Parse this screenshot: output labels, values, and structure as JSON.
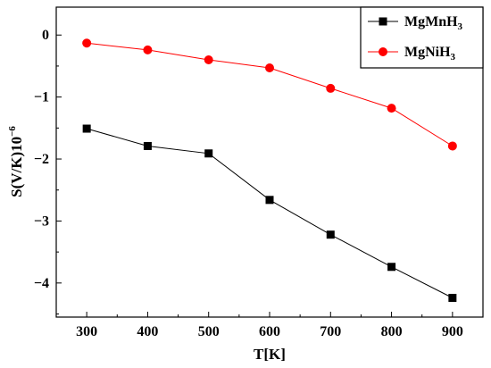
{
  "chart_data": {
    "type": "line",
    "title": "",
    "xlabel": "T[K]",
    "ylabel_base": "S(V/K)10",
    "ylabel_exponent": "−6",
    "x": [
      300,
      400,
      500,
      600,
      700,
      800,
      900
    ],
    "xlim": [
      250,
      950
    ],
    "ylim": [
      -4.55,
      0.45
    ],
    "x_ticks": [
      300,
      400,
      500,
      600,
      700,
      800,
      900
    ],
    "x_tick_labels": [
      "300",
      "400",
      "500",
      "600",
      "700",
      "800",
      "900"
    ],
    "y_ticks": [
      0,
      -1,
      -2,
      -3,
      -4
    ],
    "y_tick_labels": [
      "0",
      "−1",
      "−2",
      "−3",
      "−4"
    ],
    "grid": false,
    "legend_position": "top-right",
    "series": [
      {
        "name_base": "MgMnH",
        "name_sub": "3",
        "color": "#000000",
        "marker": "square",
        "values": [
          -1.51,
          -1.79,
          -1.91,
          -2.66,
          -3.22,
          -3.74,
          -4.24
        ]
      },
      {
        "name_base": "MgNiH",
        "name_sub": "3",
        "color": "#ff0000",
        "marker": "circle",
        "values": [
          -0.13,
          -0.24,
          -0.4,
          -0.53,
          -0.86,
          -1.18,
          -1.79
        ]
      }
    ]
  }
}
